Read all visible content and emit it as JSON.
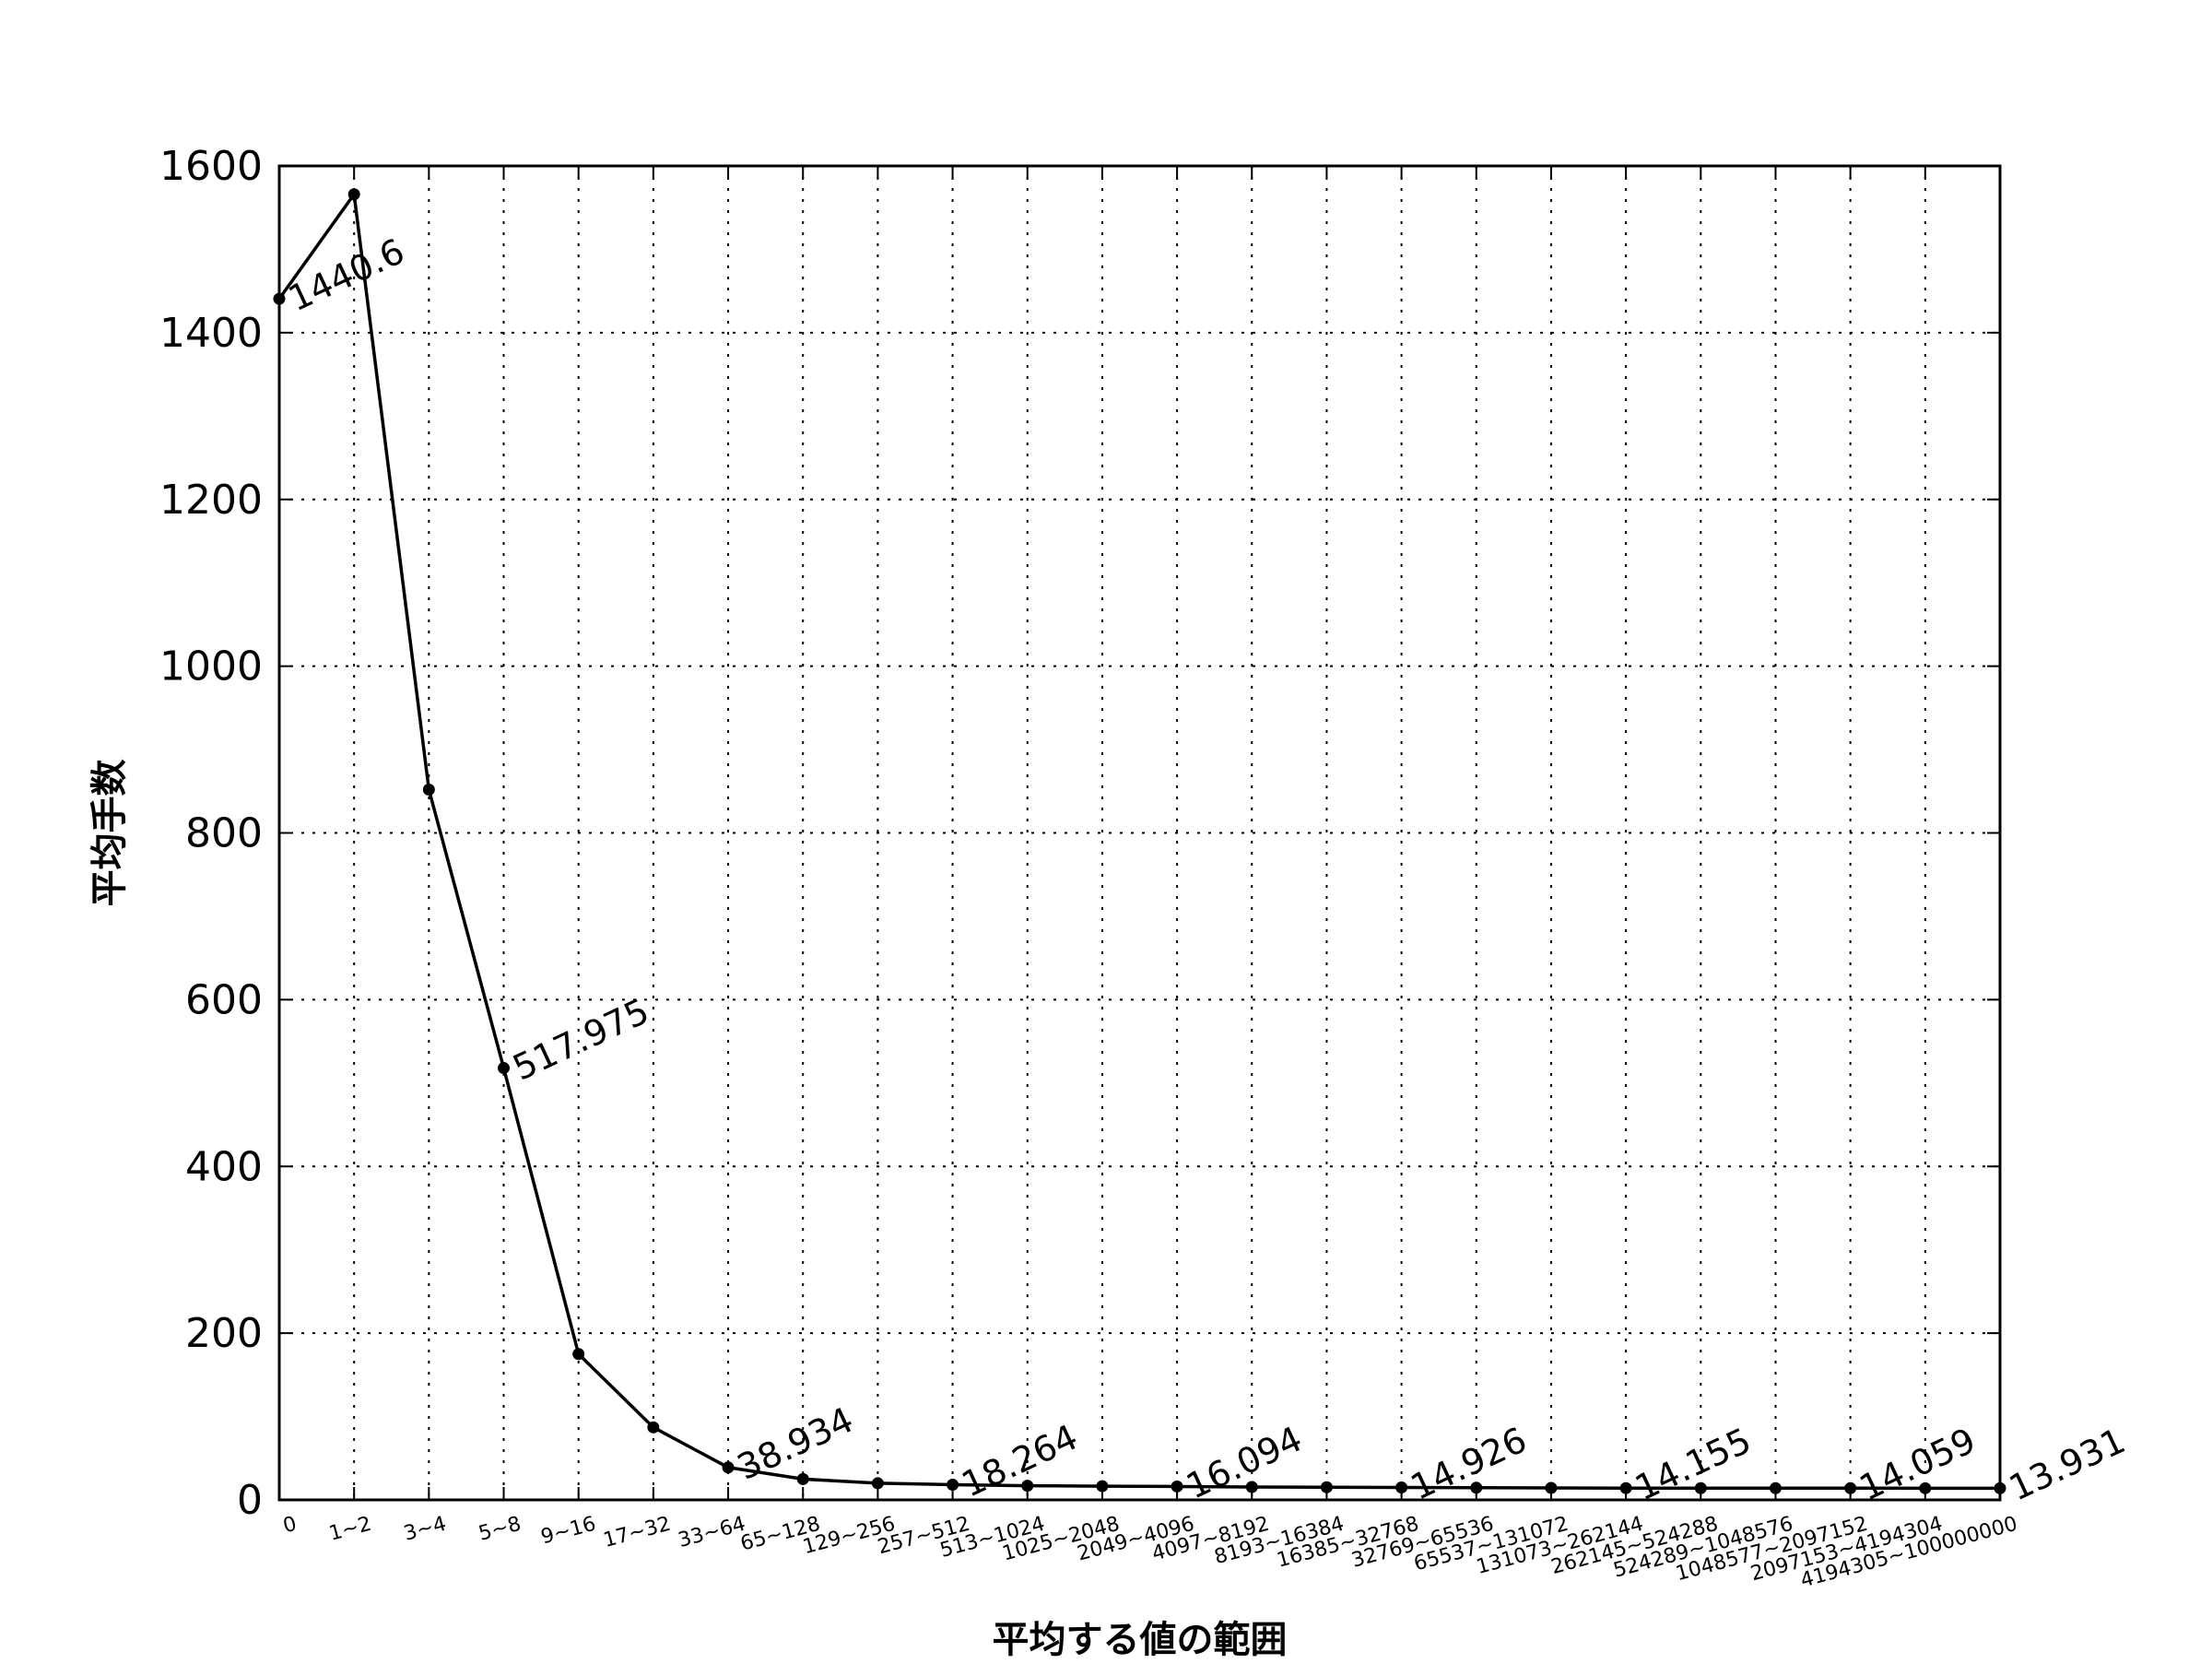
{
  "chart_data": {
    "type": "line",
    "title": "",
    "xlabel": "平均する値の範囲",
    "ylabel": "平均手数",
    "ylim": [
      0,
      1600
    ],
    "yticks": [
      0,
      200,
      400,
      600,
      800,
      1000,
      1200,
      1400,
      1600
    ],
    "grid": true,
    "categories": [
      "0",
      "1~2",
      "3~4",
      "5~8",
      "9~16",
      "17~32",
      "33~64",
      "65~128",
      "129~256",
      "257~512",
      "513~1024",
      "1025~2048",
      "2049~4096",
      "4097~8192",
      "8193~16384",
      "16385~32768",
      "32769~65536",
      "65537~131072",
      "131073~262144",
      "262145~524288",
      "524289~1048576",
      "1048577~2097152",
      "2097153~4194304",
      "4194305~100000000"
    ],
    "series": [
      {
        "values": [
          1440.6,
          1566,
          852,
          517.975,
          175,
          87,
          38.934,
          25,
          20,
          18.264,
          17,
          16.5,
          16.094,
          15.5,
          15.2,
          14.926,
          14.6,
          14.4,
          14.155,
          14.1,
          14.08,
          14.059,
          14.0,
          13.931
        ]
      }
    ],
    "annotations": [
      {
        "index": 0,
        "text": "1440.6"
      },
      {
        "index": 3,
        "text": "517.975"
      },
      {
        "index": 6,
        "text": "38.934"
      },
      {
        "index": 9,
        "text": "18.264"
      },
      {
        "index": 12,
        "text": "16.094"
      },
      {
        "index": 15,
        "text": "14.926"
      },
      {
        "index": 18,
        "text": "14.155"
      },
      {
        "index": 21,
        "text": "14.059"
      },
      {
        "index": 23,
        "text": "13.931"
      }
    ]
  }
}
